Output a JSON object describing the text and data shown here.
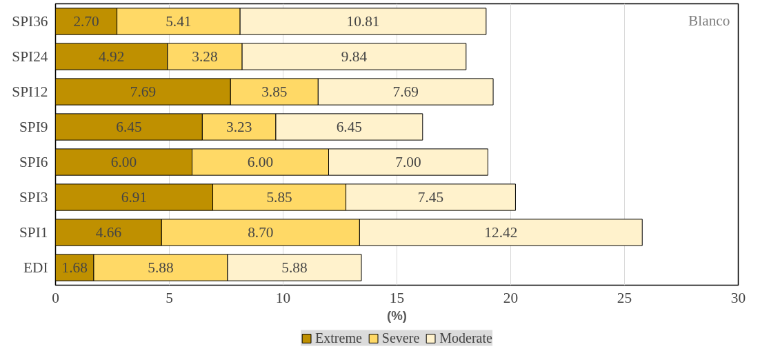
{
  "chart_data": {
    "type": "bar",
    "orientation": "horizontal",
    "stacked": true,
    "categories": [
      "SPI36",
      "SPI24",
      "SPI12",
      "SPI9",
      "SPI6",
      "SPI3",
      "SPI1",
      "EDI"
    ],
    "series": [
      {
        "name": "Extreme",
        "color": "#bf9000",
        "values": [
          2.7,
          4.92,
          7.69,
          6.45,
          6.0,
          6.91,
          4.66,
          1.68
        ],
        "value_labels": [
          "2.70",
          "4.92",
          "7.69",
          "6.45",
          "6.00",
          "6.91",
          "4.66",
          "1.68"
        ]
      },
      {
        "name": "Severe",
        "color": "#ffd966",
        "values": [
          5.41,
          3.28,
          3.85,
          3.23,
          6.0,
          5.85,
          8.7,
          5.88
        ],
        "value_labels": [
          "5.41",
          "3.28",
          "3.85",
          "3.23",
          "6.00",
          "5.85",
          "8.70",
          "5.88"
        ]
      },
      {
        "name": "Moderate",
        "color": "#fff2cc",
        "values": [
          10.81,
          9.84,
          7.69,
          6.45,
          7.0,
          7.45,
          12.42,
          5.88
        ],
        "value_labels": [
          "10.81",
          "9.84",
          "7.69",
          "6.45",
          "7.00",
          "7.45",
          "12.42",
          "5.88"
        ]
      }
    ],
    "xlim": [
      0,
      30
    ],
    "xticks": [
      0,
      5,
      10,
      15,
      20,
      25,
      30
    ],
    "xlabel": "(%)",
    "grid": "x",
    "legend": "bottom",
    "annotations": [
      "Blanco"
    ]
  }
}
